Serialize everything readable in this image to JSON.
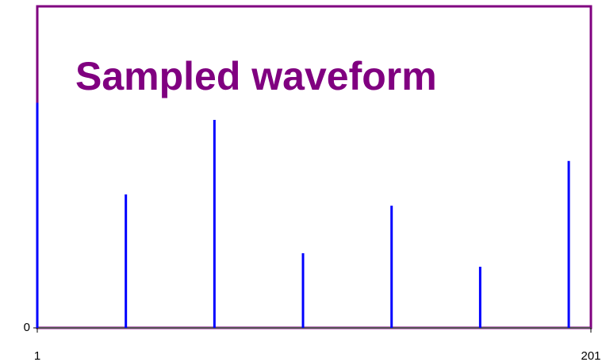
{
  "chart_data": {
    "type": "stem",
    "title": "Sampled waveform",
    "x": [
      1,
      33,
      65,
      97,
      129,
      161,
      193
    ],
    "values": [
      0.7,
      0.415,
      0.647,
      0.232,
      0.38,
      0.19,
      0.519
    ],
    "color": "#0000ff",
    "frame_color": "#800080",
    "xlim": [
      1,
      201
    ],
    "xticks": [
      1,
      201
    ],
    "ylim": [
      0,
      1
    ],
    "yticks": [
      0
    ]
  }
}
